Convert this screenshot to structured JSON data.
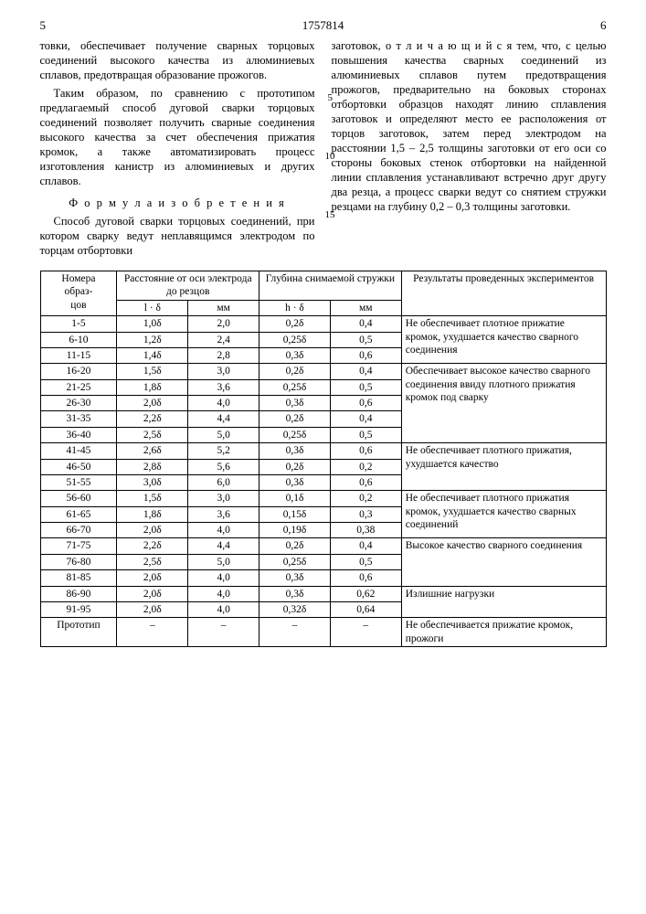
{
  "header": {
    "left_page": "5",
    "patent_number": "1757814",
    "right_page": "6"
  },
  "left_column": {
    "p1": "товки, обеспечивает получение сварных торцовых соединений высокого качества из алюминиевых сплавов, предотвращая образование прожогов.",
    "p2": "Таким образом, по сравнению с прототипом предлагаемый способ дуговой сварки торцовых соединений позволяет получить сварные соединения высокого качества за счет обеспечения прижатия кромок, а также автоматизировать процесс изготовления канистр из алюминиевых и других сплавов.",
    "formula_title": "Ф о р м у л а  и з о б р е т е н и я",
    "p3": "Способ дуговой сварки торцовых соединений, при котором сварку ведут неплавящимся электродом по торцам отбортовки"
  },
  "right_column": {
    "p1": "заготовок, о т л и ч а ю щ и й с я тем, что, с целью повышения качества сварных соединений из алюминиевых сплавов путем предотвращения прожогов, предварительно на боковых сторонах отбортовки образцов находят линию сплавления заготовок и определяют место ее расположения от торцов заготовок, затем перед электродом на расстоянии 1,5 – 2,5 толщины заготовки от его оси со стороны боковых стенок отбортовки на найденной линии сплавления устанавливают встречно друг другу два резца, а процесс сварки ведут со снятием стружки резцами на глубину 0,2 – 0,3 толщины заготовки."
  },
  "line_numbers": {
    "n5": "5",
    "n10": "10",
    "n15": "15"
  },
  "table": {
    "head": {
      "c1_l1": "Номера",
      "c1_l2": "образ-",
      "c1_l3": "цов",
      "c2": "Расстояние от оси электрода до резцов",
      "c2a": "l · δ",
      "c2b": "мм",
      "c3": "Глубина снимаемой стружки",
      "c3a": "h · δ",
      "c3b": "мм",
      "c4": "Результаты проведенных экспериментов"
    },
    "groups": [
      {
        "rows": [
          {
            "n": "1-5",
            "ld": "1,0δ",
            "lmm": "2,0",
            "hd": "0,2δ",
            "hmm": "0,4"
          },
          {
            "n": "6-10",
            "ld": "1,2δ",
            "lmm": "2,4",
            "hd": "0,25δ",
            "hmm": "0,5"
          },
          {
            "n": "11-15",
            "ld": "1,4δ",
            "lmm": "2,8",
            "hd": "0,3δ",
            "hmm": "0,6"
          }
        ],
        "result": "Не обеспечивает плотное прижатие кромок, ухудшается качество сварного соединения"
      },
      {
        "rows": [
          {
            "n": "16-20",
            "ld": "1,5δ",
            "lmm": "3,0",
            "hd": "0,2δ",
            "hmm": "0,4"
          },
          {
            "n": "21-25",
            "ld": "1,8δ",
            "lmm": "3,6",
            "hd": "0,25δ",
            "hmm": "0,5"
          },
          {
            "n": "26-30",
            "ld": "2,0δ",
            "lmm": "4,0",
            "hd": "0,3δ",
            "hmm": "0,6"
          },
          {
            "n": "31-35",
            "ld": "2,2δ",
            "lmm": "4,4",
            "hd": "0,2δ",
            "hmm": "0,4"
          },
          {
            "n": "36-40",
            "ld": "2,5δ",
            "lmm": "5,0",
            "hd": "0,25δ",
            "hmm": "0,5"
          }
        ],
        "result": "Обеспечивает высокое качество сварного соединения ввиду плотного прижатия кромок под сварку"
      },
      {
        "rows": [
          {
            "n": "41-45",
            "ld": "2,6δ",
            "lmm": "5,2",
            "hd": "0,3δ",
            "hmm": "0,6"
          },
          {
            "n": "46-50",
            "ld": "2,8δ",
            "lmm": "5,6",
            "hd": "0,2δ",
            "hmm": "0,2"
          },
          {
            "n": "51-55",
            "ld": "3,0δ",
            "lmm": "6,0",
            "hd": "0,3δ",
            "hmm": "0,6"
          }
        ],
        "result": "Не обеспечивает плотного прижатия, ухудшается качество"
      },
      {
        "rows": [
          {
            "n": "56-60",
            "ld": "1,5δ",
            "lmm": "3,0",
            "hd": "0,1δ",
            "hmm": "0,2"
          },
          {
            "n": "61-65",
            "ld": "1,8δ",
            "lmm": "3,6",
            "hd": "0,15δ",
            "hmm": "0,3"
          },
          {
            "n": "66-70",
            "ld": "2,0δ",
            "lmm": "4,0",
            "hd": "0,19δ",
            "hmm": "0,38"
          }
        ],
        "result": "Не обеспечивает плотного прижатия кромок, ухудшается качество сварных соединений"
      },
      {
        "rows": [
          {
            "n": "71-75",
            "ld": "2,2δ",
            "lmm": "4,4",
            "hd": "0,2δ",
            "hmm": "0,4"
          },
          {
            "n": "76-80",
            "ld": "2,5δ",
            "lmm": "5,0",
            "hd": "0,25δ",
            "hmm": "0,5"
          },
          {
            "n": "81-85",
            "ld": "2,0δ",
            "lmm": "4,0",
            "hd": "0,3δ",
            "hmm": "0,6"
          }
        ],
        "result": "Высокое качество сварного соединения"
      },
      {
        "rows": [
          {
            "n": "86-90",
            "ld": "2,0δ",
            "lmm": "4,0",
            "hd": "0,3δ",
            "hmm": "0,62"
          },
          {
            "n": "91-95",
            "ld": "2,0δ",
            "lmm": "4,0",
            "hd": "0,32δ",
            "hmm": "0,64"
          }
        ],
        "result": "Излишние нагрузки"
      },
      {
        "rows": [
          {
            "n": "Прототип",
            "ld": "–",
            "lmm": "–",
            "hd": "–",
            "hmm": "–"
          }
        ],
        "result": "Не обеспечивается прижатие кромок, прожоги"
      }
    ]
  }
}
